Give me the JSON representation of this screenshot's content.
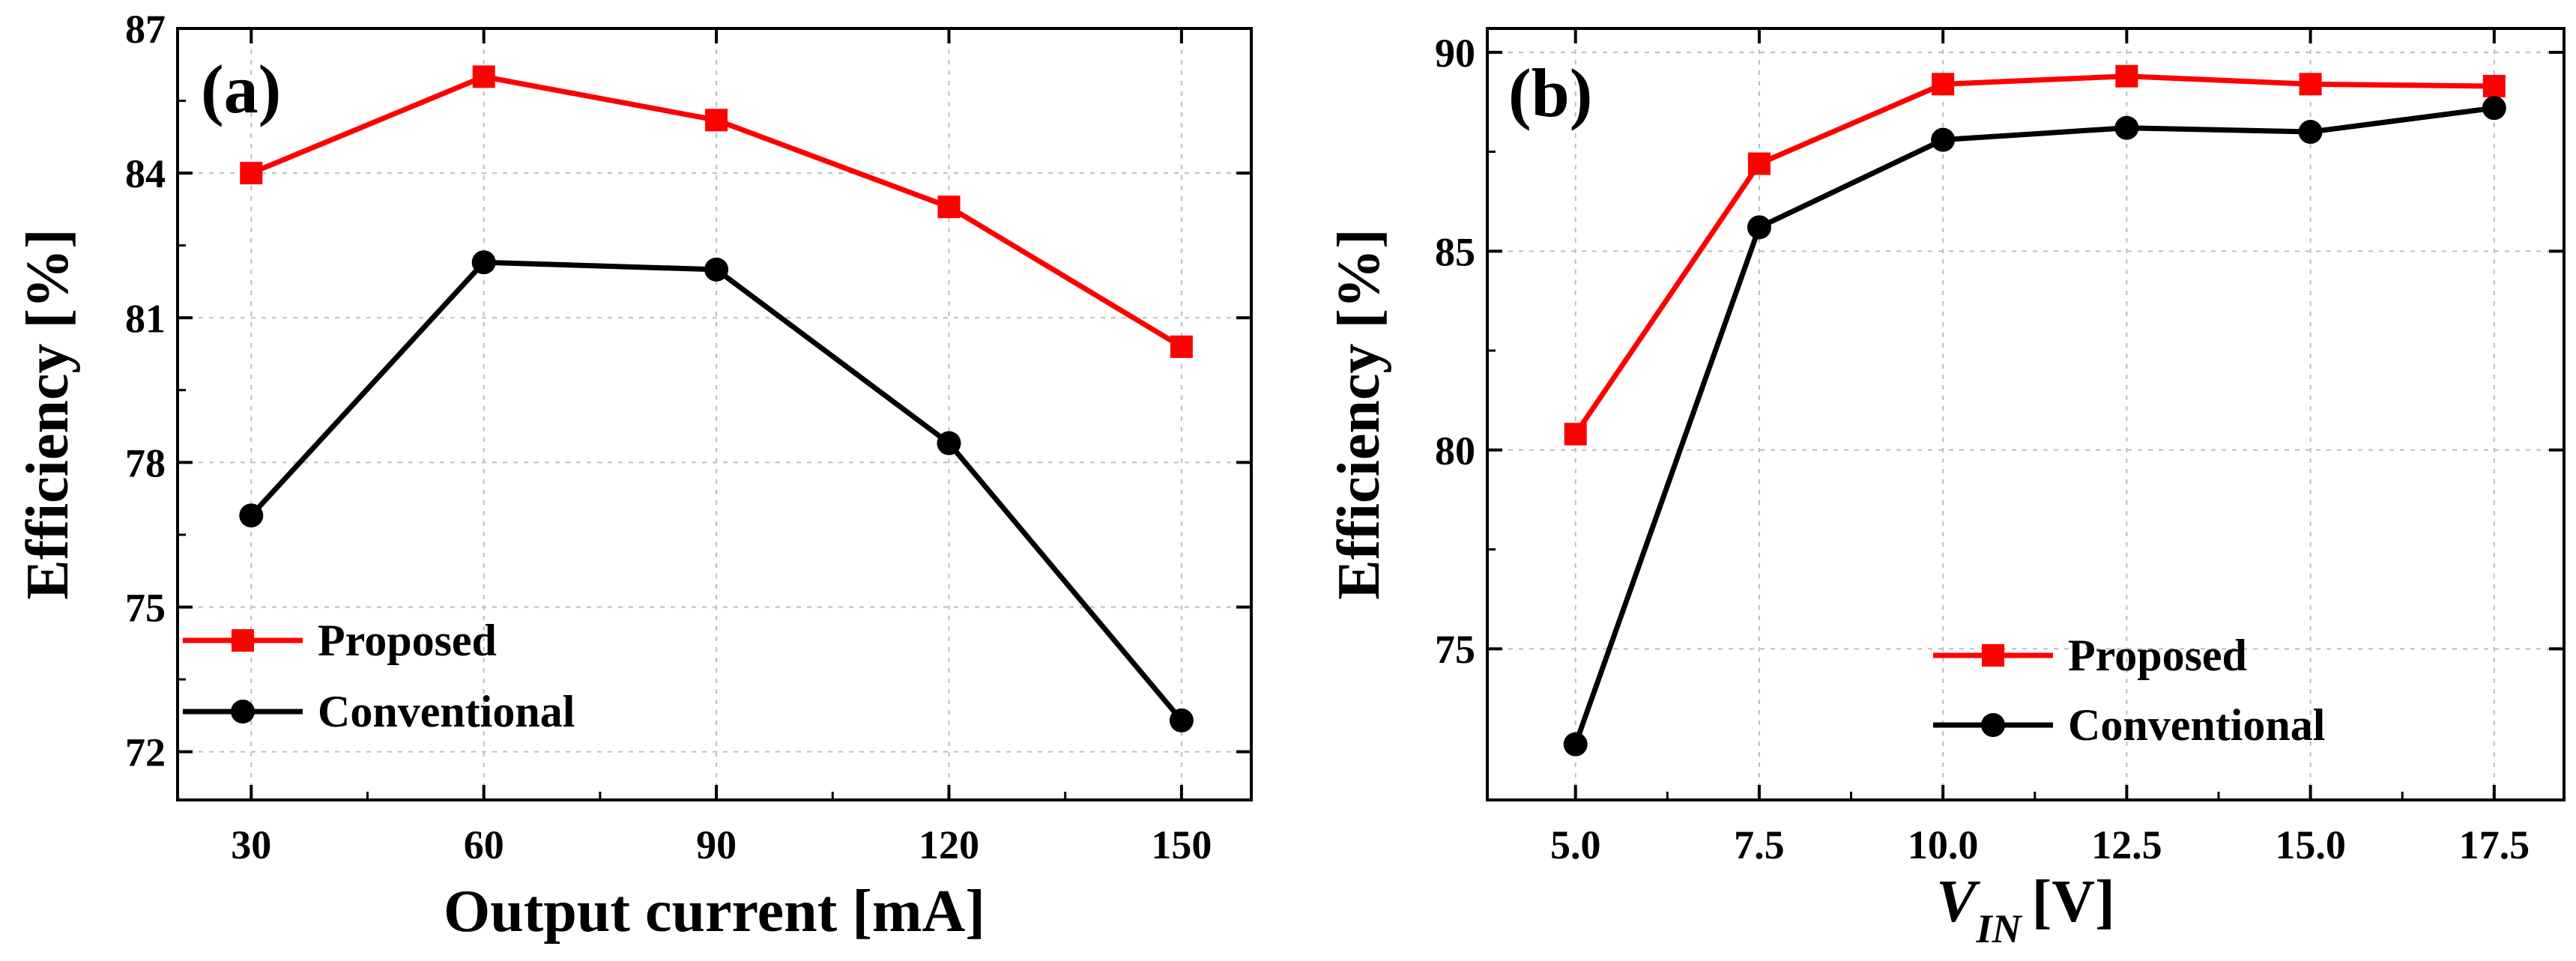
{
  "chart_data": [
    {
      "type": "line",
      "panel_label": "(a)",
      "xlabel": "Output current [mA]",
      "ylabel": "Efficiency [%]",
      "x": [
        30,
        60,
        90,
        120,
        150
      ],
      "xticks": [
        "30",
        "60",
        "90",
        "120",
        "150"
      ],
      "xlim": [
        20.5,
        159
      ],
      "yticks": [
        "72",
        "75",
        "78",
        "81",
        "84",
        "87"
      ],
      "ylim": [
        71,
        87
      ],
      "grid": true,
      "legend_position": "bottom-left",
      "series": [
        {
          "name": "Proposed",
          "color": "#ff0000",
          "marker": "square",
          "values": [
            84.0,
            86.0,
            85.1,
            83.3,
            80.4
          ]
        },
        {
          "name": "Conventional",
          "color": "#000000",
          "marker": "circle",
          "values": [
            76.9,
            82.15,
            82.0,
            78.4,
            72.65
          ]
        }
      ]
    },
    {
      "type": "line",
      "panel_label": "(b)",
      "xlabel_main": "V",
      "xlabel_sub": "IN",
      "xlabel_unit": "[V]",
      "ylabel": "Efficiency [%]",
      "x": [
        5.0,
        7.5,
        10.0,
        12.5,
        15.0,
        17.5
      ],
      "xticks": [
        "5.0",
        "7.5",
        "10.0",
        "12.5",
        "15.0",
        "17.5"
      ],
      "xlim": [
        3.8,
        18.45
      ],
      "yticks": [
        "75",
        "80",
        "85",
        "90"
      ],
      "ylim": [
        71.2,
        90.6
      ],
      "grid": true,
      "legend_position": "bottom-right",
      "series": [
        {
          "name": "Proposed",
          "color": "#ff0000",
          "marker": "square",
          "values": [
            80.4,
            87.2,
            89.2,
            89.4,
            89.2,
            89.15
          ]
        },
        {
          "name": "Conventional",
          "color": "#000000",
          "marker": "circle",
          "values": [
            72.6,
            85.6,
            87.8,
            88.1,
            88.0,
            88.6
          ]
        }
      ]
    }
  ]
}
